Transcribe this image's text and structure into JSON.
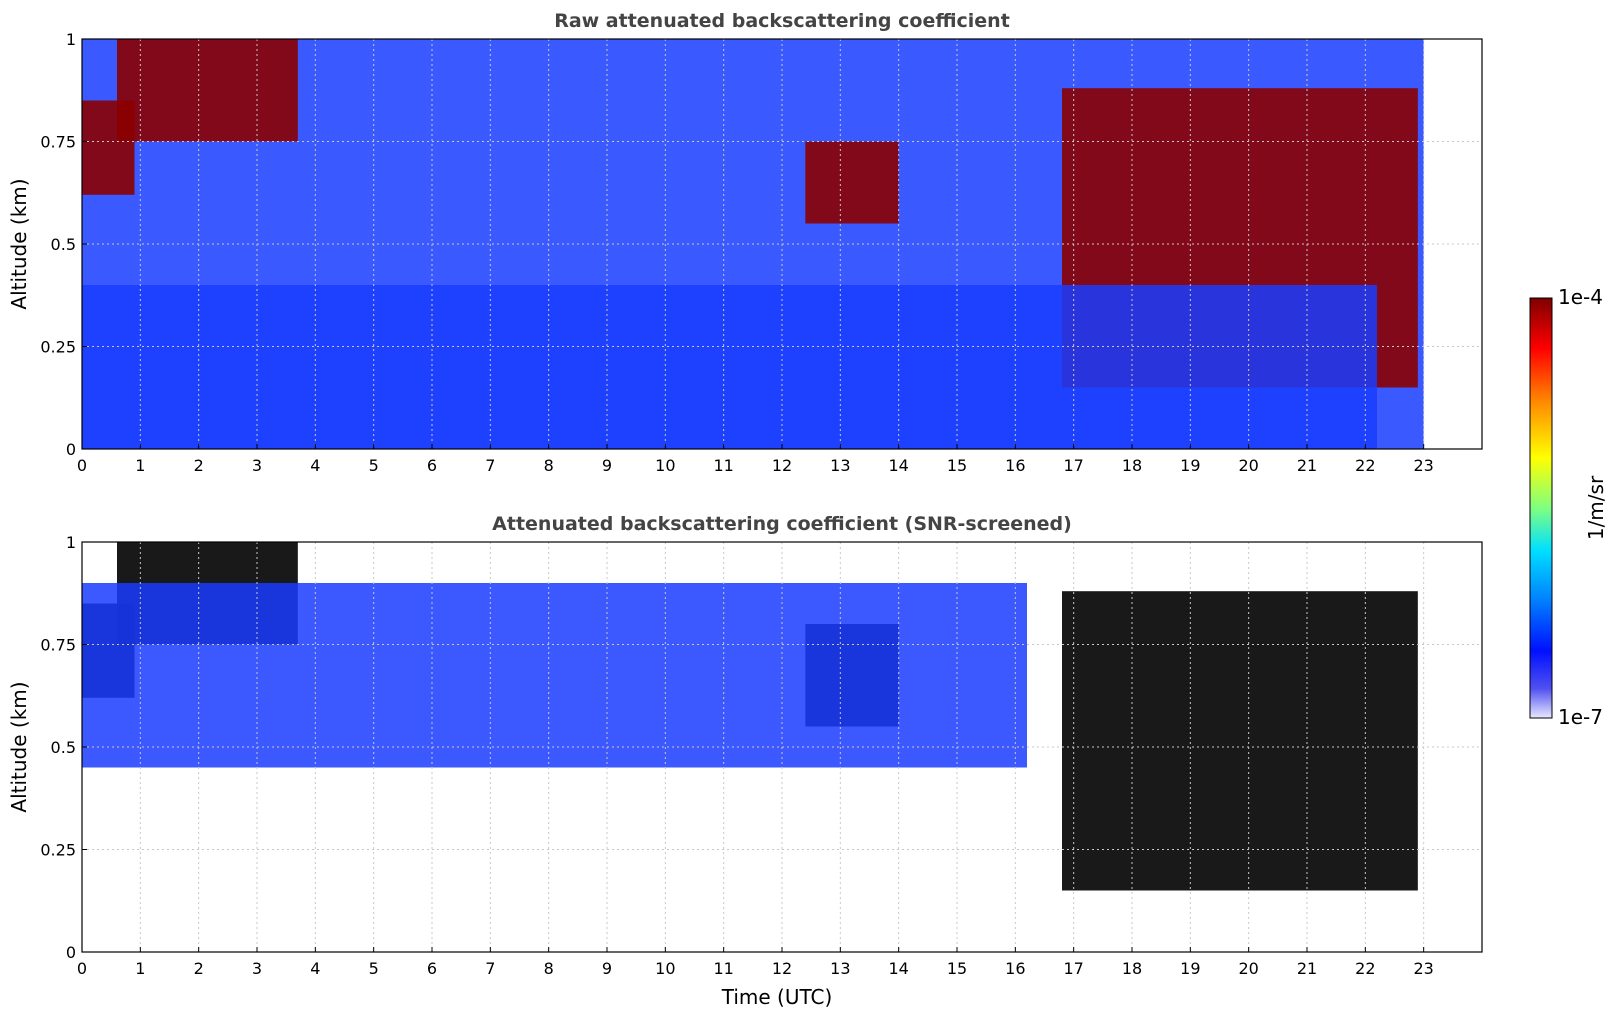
{
  "chart_data": [
    {
      "type": "heatmap",
      "title": "Raw attenuated backscattering coefficient",
      "ylabel": "Altitude (km)",
      "xlabel": "",
      "xlim": [
        0,
        24
      ],
      "ylim": [
        0,
        1
      ],
      "x_ticks": [
        "0",
        "1",
        "2",
        "3",
        "4",
        "5",
        "6",
        "7",
        "8",
        "9",
        "10",
        "11",
        "12",
        "13",
        "14",
        "15",
        "16",
        "17",
        "18",
        "19",
        "20",
        "21",
        "22",
        "23"
      ],
      "y_ticks": [
        "0",
        "0.25",
        "0.5",
        "0.75",
        "1"
      ],
      "grid": true,
      "data_end_hour": 23,
      "features": [
        {
          "kind": "cloud",
          "time": [
            0.0,
            0.9
          ],
          "altitude": [
            0.62,
            0.85
          ]
        },
        {
          "kind": "cloud",
          "time": [
            0.6,
            3.7
          ],
          "altitude": [
            0.75,
            1.0
          ]
        },
        {
          "kind": "cloud",
          "time": [
            12.4,
            14.0
          ],
          "altitude": [
            0.55,
            0.75
          ]
        },
        {
          "kind": "cloud",
          "time": [
            16.8,
            22.9
          ],
          "altitude": [
            0.15,
            0.88
          ]
        },
        {
          "kind": "boundary_layer",
          "time": [
            0.0,
            22.2
          ],
          "altitude": [
            0.0,
            0.4
          ]
        }
      ]
    },
    {
      "type": "heatmap",
      "title": "Attenuated backscattering coefficient (SNR-screened)",
      "ylabel": "Altitude (km)",
      "xlabel": "Time (UTC)",
      "xlim": [
        0,
        24
      ],
      "ylim": [
        0,
        1
      ],
      "x_ticks": [
        "0",
        "1",
        "2",
        "3",
        "4",
        "5",
        "6",
        "7",
        "8",
        "9",
        "10",
        "11",
        "12",
        "13",
        "14",
        "15",
        "16",
        "17",
        "18",
        "19",
        "20",
        "21",
        "22",
        "23"
      ],
      "y_ticks": [
        "0",
        "0.25",
        "0.5",
        "0.75",
        "1"
      ],
      "grid": true,
      "data_end_hour": 23,
      "features": [
        {
          "kind": "cloud",
          "time": [
            0.0,
            0.9
          ],
          "altitude": [
            0.62,
            0.85
          ]
        },
        {
          "kind": "cloud",
          "time": [
            0.6,
            3.7
          ],
          "altitude": [
            0.75,
            1.0
          ]
        },
        {
          "kind": "cloud",
          "time": [
            12.4,
            14.0
          ],
          "altitude": [
            0.55,
            0.8
          ]
        },
        {
          "kind": "cloud",
          "time": [
            16.8,
            22.9
          ],
          "altitude": [
            0.15,
            0.88
          ]
        },
        {
          "kind": "screened_layer_top",
          "time": [
            0.0,
            16.2
          ],
          "altitude": [
            0.45,
            0.9
          ]
        }
      ]
    }
  ],
  "colorbar": {
    "label": "1/m/sr",
    "max_label": "1e-4",
    "min_label": "1e-7",
    "colors": [
      "#7f0000",
      "#ff0000",
      "#ff7f00",
      "#ffff00",
      "#7fff7f",
      "#00ffff",
      "#007fff",
      "#0000ff",
      "#00008f",
      "#e8e8ff"
    ]
  }
}
